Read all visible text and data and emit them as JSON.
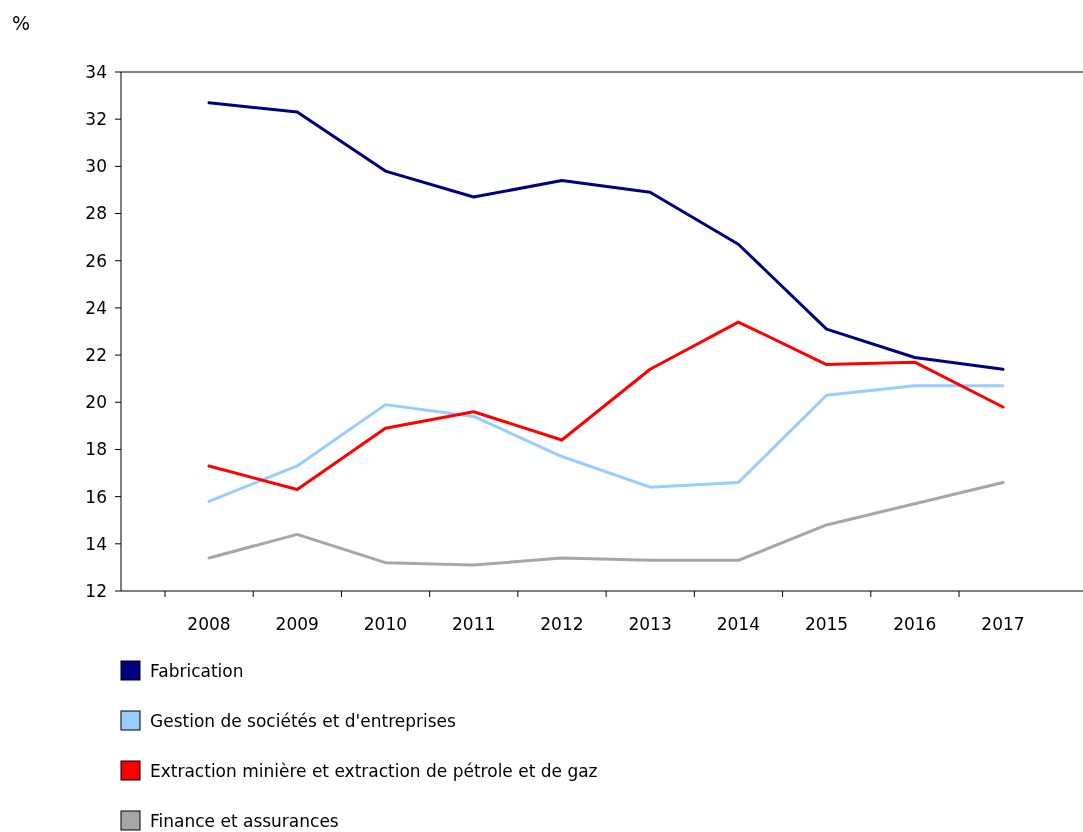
{
  "chart_data": {
    "type": "line",
    "ylabel": "%",
    "categories": [
      "2008",
      "2009",
      "2010",
      "2011",
      "2012",
      "2013",
      "2014",
      "2015",
      "2016",
      "2017"
    ],
    "ylim": [
      12,
      34
    ],
    "yticks": [
      12,
      14,
      16,
      18,
      20,
      22,
      24,
      26,
      28,
      30,
      32,
      34
    ],
    "grid": false,
    "legend": "bottom",
    "line_style": "solid",
    "marker": "none",
    "series": [
      {
        "name": "Fabrication",
        "color": "#000080",
        "values": [
          32.7,
          32.3,
          29.8,
          28.7,
          29.4,
          28.9,
          26.7,
          23.1,
          21.9,
          21.4
        ]
      },
      {
        "name": "Gestion de sociétés et d'entreprises",
        "color": "#99ccff",
        "values": [
          15.8,
          17.3,
          19.9,
          19.4,
          17.7,
          16.4,
          16.6,
          20.3,
          20.7,
          20.7
        ]
      },
      {
        "name": "Extraction minière et extraction de pétrole et de gaz",
        "color": "#ff0000",
        "values": [
          17.3,
          16.3,
          18.9,
          19.6,
          18.4,
          21.4,
          23.4,
          21.6,
          21.7,
          19.8
        ]
      },
      {
        "name": "Finance et assurances",
        "color": "#a6a6a6",
        "values": [
          13.4,
          14.4,
          13.2,
          13.1,
          13.4,
          13.3,
          13.3,
          14.8,
          15.7,
          16.6
        ]
      }
    ]
  }
}
